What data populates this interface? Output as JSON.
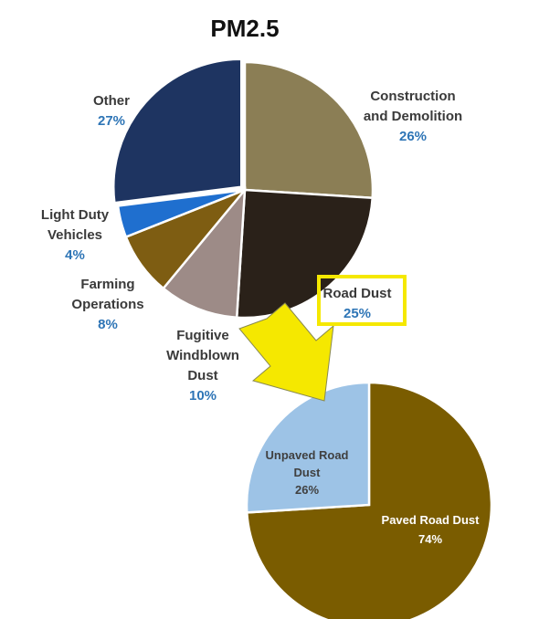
{
  "chart_data": [
    {
      "type": "pie",
      "title": "PM2.5",
      "categories": [
        "Construction and Demolition",
        "Road Dust",
        "Fugitive Windblown Dust",
        "Farming Operations",
        "Light Duty Vehicles",
        "Other"
      ],
      "values": [
        26,
        25,
        10,
        8,
        4,
        27
      ],
      "label_lines": [
        [
          "Construction",
          "and Demolition"
        ],
        [
          "Road Dust"
        ],
        [
          "Fugitive",
          "Windblown",
          "Dust"
        ],
        [
          "Farming",
          "Operations"
        ],
        [
          "Light Duty",
          "Vehicles"
        ],
        [
          "Other"
        ]
      ],
      "percent_labels": [
        "26%",
        "25%",
        "10%",
        "8%",
        "4%",
        "27%"
      ],
      "colors": [
        "#8b7e55",
        "#2a2119",
        "#9d8b87",
        "#7e5d12",
        "#1f6fcf",
        "#1e3461"
      ],
      "highlight": "Road Dust",
      "highlight_color": "#f5e800",
      "legend": "none"
    },
    {
      "type": "pie",
      "title": "",
      "categories": [
        "Paved Road Dust",
        "Unpaved Road Dust"
      ],
      "values": [
        74,
        26
      ],
      "label_lines": [
        [
          "Paved Road Dust"
        ],
        [
          "Unpaved Road",
          "Dust"
        ]
      ],
      "percent_labels": [
        "74%",
        "26%"
      ],
      "colors": [
        "#7a5c00",
        "#9dc3e6"
      ],
      "legend": "none"
    }
  ],
  "arrow_color": "#f5e800"
}
